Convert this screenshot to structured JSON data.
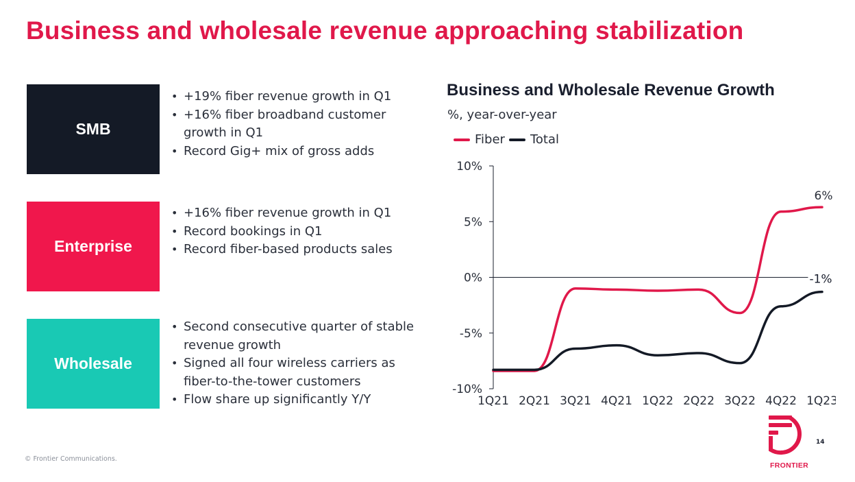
{
  "page": {
    "title": "Business and wholesale revenue approaching stabilization",
    "copyright": "© Frontier Communications.",
    "page_number": "14",
    "logo_text": "FRONTIER"
  },
  "colors": {
    "brand_red": "#e0184a",
    "navy": "#141a26",
    "teal": "#19c9b4"
  },
  "segments": [
    {
      "label": "SMB",
      "color": "#141a26",
      "bullets": [
        "+19% fiber revenue growth in Q1",
        "+16% fiber broadband customer growth in Q1",
        "Record Gig+ mix of gross adds"
      ]
    },
    {
      "label": "Enterprise",
      "color": "#f0174c",
      "bullets": [
        "+16% fiber revenue growth in Q1",
        "Record bookings in Q1",
        "Record fiber-based products sales"
      ]
    },
    {
      "label": "Wholesale",
      "color": "#19c9b4",
      "bullets": [
        "Second consecutive quarter of stable revenue growth",
        "Signed all four wireless carriers as fiber-to-the-tower customers",
        "Flow share up significantly Y/Y"
      ]
    }
  ],
  "chart_data": {
    "type": "line",
    "title": "Business and Wholesale Revenue Growth",
    "subtitle": "%, year-over-year",
    "categories": [
      "1Q21",
      "2Q21",
      "3Q21",
      "4Q21",
      "1Q22",
      "2Q22",
      "3Q22",
      "4Q22",
      "1Q23"
    ],
    "ylim": [
      -10,
      10
    ],
    "y_ticks": [
      10,
      5,
      0,
      -5,
      -10
    ],
    "y_tick_labels": [
      "10%",
      "5%",
      "0%",
      "-5%",
      "-10%"
    ],
    "zero_line": true,
    "legend_position": "top-left",
    "series": [
      {
        "name": "Fiber",
        "color": "#e0184a",
        "values": [
          -8.4,
          -8.4,
          -1.0,
          -1.1,
          -1.2,
          -1.1,
          -3.2,
          5.9,
          6.3
        ],
        "end_label": "6%"
      },
      {
        "name": "Total",
        "color": "#141a26",
        "values": [
          -8.3,
          -8.3,
          -6.4,
          -6.1,
          -7.0,
          -6.8,
          -7.7,
          -2.6,
          -1.3
        ],
        "end_label": "-1%"
      }
    ]
  }
}
